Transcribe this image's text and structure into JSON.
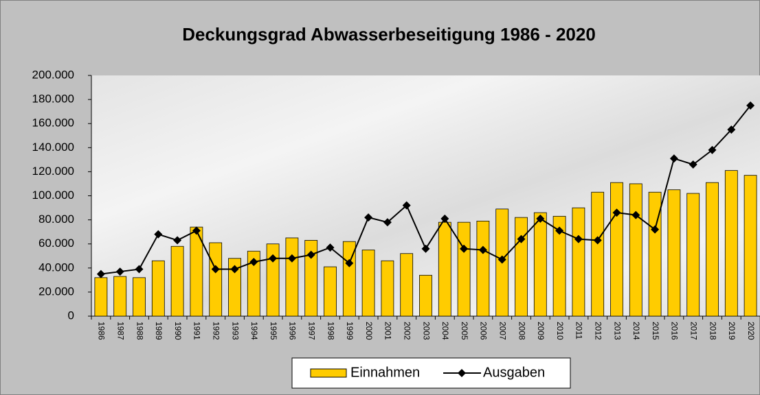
{
  "chart_data": {
    "type": "bar",
    "title": "Deckungsgrad Abwasserbeseitigung 1986 - 2020",
    "categories": [
      "1986",
      "1987",
      "1988",
      "1989",
      "1990",
      "1991",
      "1992",
      "1993",
      "1994",
      "1995",
      "1996",
      "1997",
      "1998",
      "1999",
      "2000",
      "2001",
      "2002",
      "2003",
      "2004",
      "2005",
      "2006",
      "2007",
      "2008",
      "2009",
      "2010",
      "2011",
      "2012",
      "2013",
      "2014",
      "2015",
      "2016",
      "2017",
      "2018",
      "2019",
      "2020"
    ],
    "series": [
      {
        "name": "Einnahmen",
        "type": "bar",
        "color": "#ffcc00",
        "values": [
          32000,
          33000,
          32000,
          46000,
          58000,
          74000,
          61000,
          48000,
          54000,
          60000,
          65000,
          63000,
          41000,
          62000,
          55000,
          46000,
          52000,
          34000,
          78000,
          78000,
          79000,
          89000,
          82000,
          86000,
          83000,
          90000,
          103000,
          111000,
          110000,
          103000,
          105000,
          102000,
          111000,
          121000,
          117000
        ]
      },
      {
        "name": "Ausgaben",
        "type": "line",
        "color": "#000000",
        "values": [
          35000,
          37000,
          39000,
          68000,
          63000,
          71000,
          39000,
          39000,
          45000,
          48000,
          48000,
          51000,
          57000,
          44000,
          82000,
          78000,
          92000,
          56000,
          81000,
          56000,
          55000,
          47000,
          64000,
          81000,
          71000,
          64000,
          63000,
          86000,
          84000,
          72000,
          131000,
          126000,
          138000,
          155000,
          175000
        ]
      }
    ],
    "ylim": [
      0,
      200000
    ],
    "yticks": [
      0,
      {
        "value": 20000,
        "label": "20.000"
      },
      {
        "value": 40000,
        "label": "40.000"
      },
      {
        "value": 60000,
        "label": "60.000"
      },
      {
        "value": 80000,
        "label": "80.000"
      },
      {
        "value": 100000,
        "label": "100.000"
      },
      {
        "value": 120000,
        "label": "120.000"
      },
      {
        "value": 140000,
        "label": "140.000"
      },
      {
        "value": 160000,
        "label": "160.000"
      },
      {
        "value": 180000,
        "label": "180.000"
      },
      {
        "value": 200000,
        "label": "200.000"
      }
    ],
    "legend": "bottom"
  }
}
